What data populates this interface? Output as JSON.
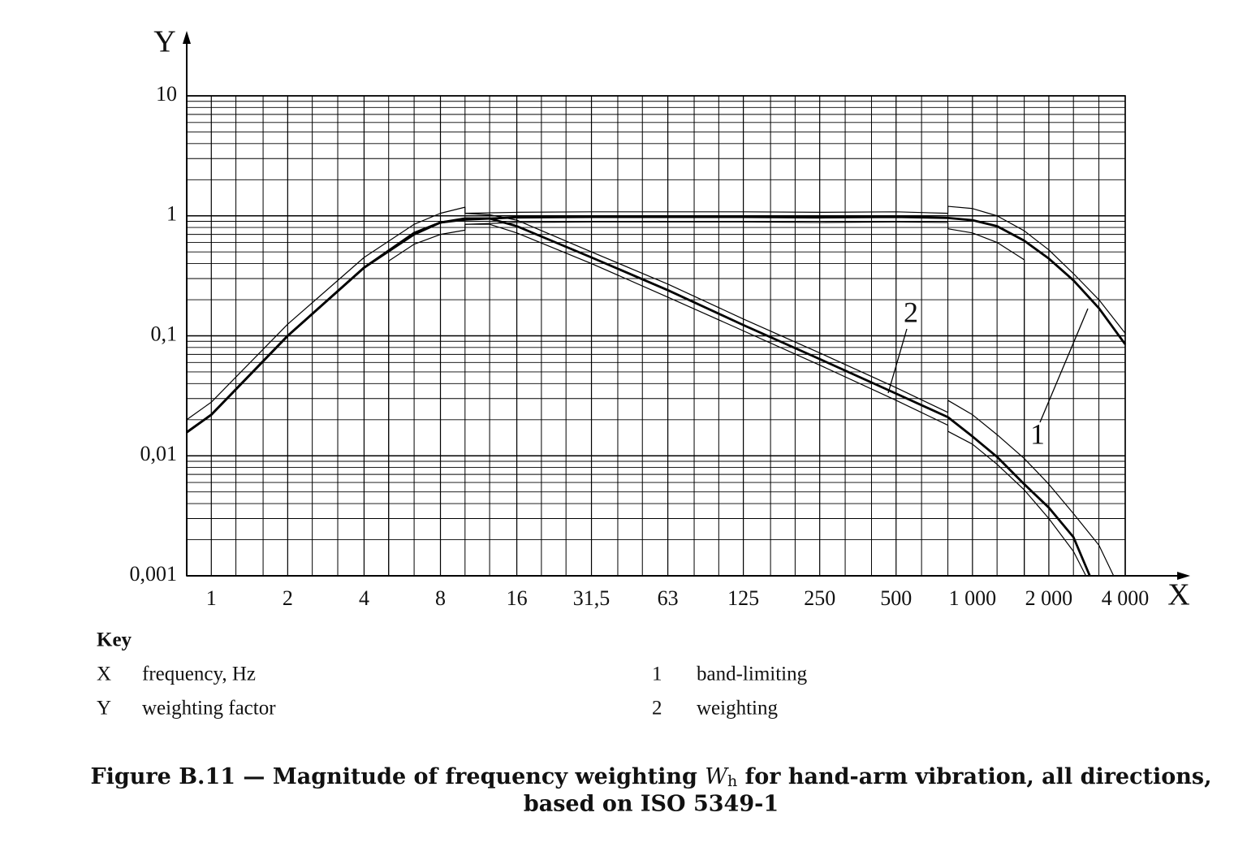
{
  "chart_data": {
    "type": "line",
    "xlabel": "X",
    "ylabel": "Y",
    "log_x": true,
    "log_y": true,
    "grid": true,
    "xlim": [
      0.8,
      4000
    ],
    "ylim": [
      0.001,
      10
    ],
    "xticks": [
      1,
      2,
      4,
      8,
      16,
      {
        "value": 31.5,
        "label": "31,5"
      },
      63,
      125,
      250,
      500,
      {
        "value": 1000,
        "label": "1 000"
      },
      {
        "value": 2000,
        "label": "2 000"
      },
      {
        "value": 4000,
        "label": "4 000"
      }
    ],
    "yticks": [
      {
        "value": 0.001,
        "label": "0,001"
      },
      {
        "value": 0.01,
        "label": "0,01"
      },
      {
        "value": 0.1,
        "label": "0,1"
      },
      1,
      10
    ],
    "xgrid": [
      1.25,
      1.6,
      2.5,
      3.15,
      5,
      6.3,
      10,
      12.5,
      20,
      25,
      40,
      50,
      80,
      100,
      160,
      200,
      315,
      400,
      630,
      800,
      1250,
      1600,
      2500,
      3150
    ],
    "ygrid": [
      0.002,
      0.003,
      0.004,
      0.005,
      0.006,
      0.007,
      0.008,
      0.009,
      0.02,
      0.03,
      0.04,
      0.05,
      0.06,
      0.07,
      0.08,
      0.09,
      0.2,
      0.3,
      0.4,
      0.5,
      0.6,
      0.7,
      0.8,
      0.9,
      2,
      3,
      4,
      5,
      6,
      7,
      8,
      9
    ],
    "series": [
      {
        "name": "band-limiting",
        "label": "1",
        "color": "#000000",
        "style": "thick",
        "x": [
          0.8,
          1,
          2,
          4,
          6.3,
          8,
          10,
          16,
          31.5,
          63,
          125,
          250,
          500,
          800,
          1000,
          1250,
          1600,
          2000,
          2500,
          3150,
          4000
        ],
        "values": [
          0.0157,
          0.022,
          0.1,
          0.37,
          0.72,
          0.88,
          0.93,
          0.97,
          0.98,
          0.98,
          0.98,
          0.97,
          0.98,
          0.96,
          0.92,
          0.82,
          0.62,
          0.44,
          0.29,
          0.17,
          0.085
        ]
      },
      {
        "name": "weighting",
        "label": "2",
        "color": "#000000",
        "style": "thick",
        "x": [
          0.8,
          1,
          2,
          4,
          6.3,
          8,
          10,
          12.5,
          16,
          31.5,
          63,
          125,
          250,
          500,
          800,
          1000,
          1250,
          1600,
          2000,
          2500,
          2900
        ],
        "values": [
          0.0157,
          0.022,
          0.1,
          0.37,
          0.7,
          0.88,
          0.95,
          0.95,
          0.82,
          0.45,
          0.24,
          0.123,
          0.064,
          0.033,
          0.021,
          0.0145,
          0.0098,
          0.0058,
          0.0037,
          0.0021,
          0.001
        ]
      },
      {
        "color": "#000000",
        "style": "thin",
        "x": [
          0.8,
          1,
          2,
          4,
          6.3,
          8,
          10,
          10,
          16,
          31.5,
          63,
          125,
          250,
          500,
          800,
          800,
          1000,
          1250,
          1600,
          2000,
          2500,
          3150,
          4000
        ],
        "values": [
          0.02,
          0.028,
          0.125,
          0.45,
          0.85,
          1.05,
          1.18,
          1.05,
          1.07,
          1.08,
          1.08,
          1.08,
          1.07,
          1.08,
          1.05,
          1.2,
          1.15,
          1.0,
          0.75,
          0.52,
          0.33,
          0.2,
          0.105
        ]
      },
      {
        "color": "#000000",
        "style": "thin",
        "x": [
          5,
          5,
          6.3,
          8,
          10,
          10,
          16,
          31.5,
          63,
          125,
          250,
          500,
          800,
          800,
          1000,
          1250,
          1600,
          1600
        ],
        "values": [
          0.001,
          0.42,
          0.58,
          0.7,
          0.76,
          0.85,
          0.88,
          0.89,
          0.89,
          0.89,
          0.88,
          0.89,
          0.88,
          0.78,
          0.72,
          0.6,
          0.43,
          0.001
        ]
      },
      {
        "color": "#000000",
        "style": "thin",
        "x": [
          10,
          12.5,
          16,
          31.5,
          63,
          125,
          250,
          500,
          800,
          800,
          1000,
          1250,
          1600,
          2000,
          2500,
          3150,
          3600
        ],
        "values": [
          1.05,
          1.02,
          0.92,
          0.5,
          0.27,
          0.138,
          0.072,
          0.037,
          0.023,
          0.029,
          0.022,
          0.015,
          0.0095,
          0.0058,
          0.0033,
          0.0018,
          0.001
        ]
      },
      {
        "color": "#000000",
        "style": "thin",
        "x": [
          10,
          12.5,
          16,
          31.5,
          63,
          125,
          250,
          500,
          800,
          800,
          1000,
          1250,
          1600,
          2000,
          2500,
          2800
        ],
        "values": [
          0.85,
          0.85,
          0.72,
          0.4,
          0.21,
          0.11,
          0.057,
          0.029,
          0.018,
          0.016,
          0.0125,
          0.0085,
          0.0052,
          0.003,
          0.0016,
          0.001
        ]
      }
    ]
  },
  "key": {
    "title": "Key",
    "items": [
      {
        "symbol": "X",
        "text": "frequency, Hz"
      },
      {
        "symbol": "Y",
        "text": "weighting factor"
      }
    ]
  },
  "caption": {
    "prefix": "Figure B.11 — Magnitude of frequency weighting ",
    "symbol": "W",
    "subscript": "h",
    "suffix": " for hand-arm vibration, all directions,",
    "line2": "based on ISO 5349-1"
  }
}
